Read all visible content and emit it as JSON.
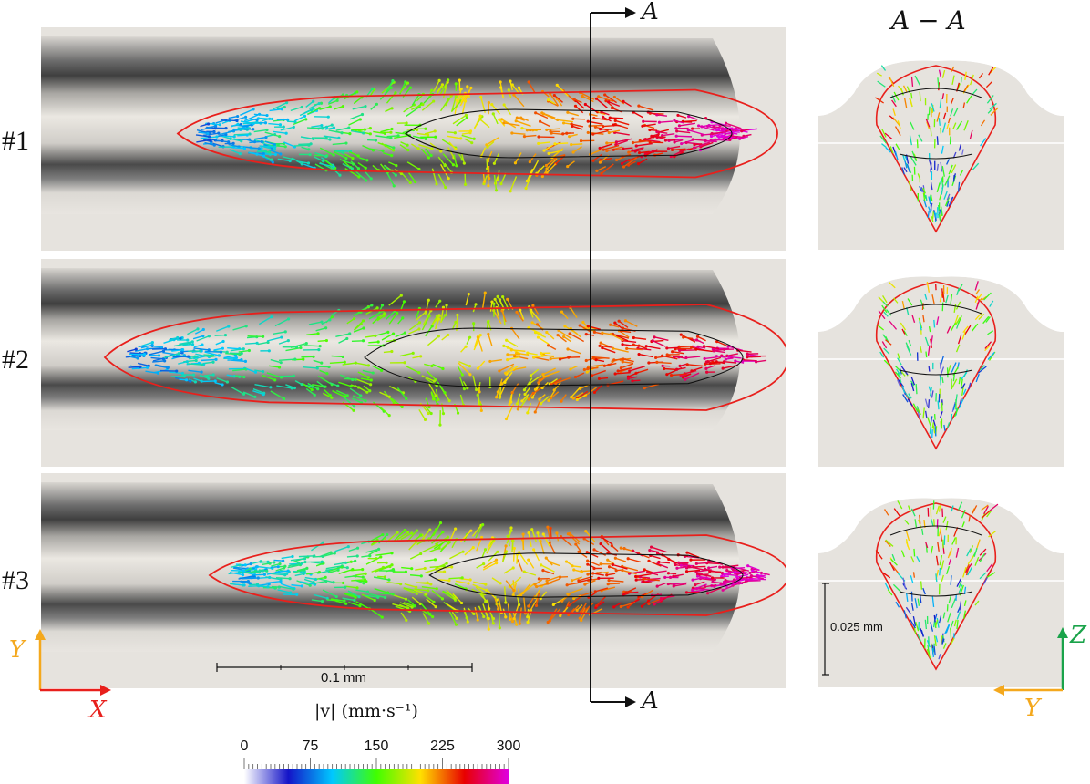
{
  "cases": [
    {
      "label": "#1"
    },
    {
      "label": "#2"
    },
    {
      "label": "#3"
    }
  ],
  "section": {
    "title": "A − A",
    "marker_top": "A",
    "marker_bottom": "A"
  },
  "axes_top_view": {
    "x_label": "X",
    "y_label": "Y",
    "x_color": "#e8201c",
    "y_color": "#f4a81d"
  },
  "axes_section_view": {
    "y_label": "Y",
    "z_label": "Z",
    "y_color": "#f4a81d",
    "z_color": "#1aa34a"
  },
  "scale_bars": {
    "top_view": "0.1 mm",
    "section_view": "0.025 mm"
  },
  "colorbar": {
    "title": "|v| (mm·s⁻¹)",
    "ticks": [
      "0",
      "75",
      "150",
      "225",
      "300"
    ],
    "min": 0,
    "max": 300,
    "stops": [
      "#ffffff",
      "#1414c8",
      "#00c8ff",
      "#40ff00",
      "#ffe000",
      "#e80000",
      "#e000e0"
    ]
  },
  "colors": {
    "melt_pool_boundary": "#e8201c",
    "isoline": "#111111",
    "substrate": "#e6e3de",
    "track_dark": "#5c5c5c"
  }
}
